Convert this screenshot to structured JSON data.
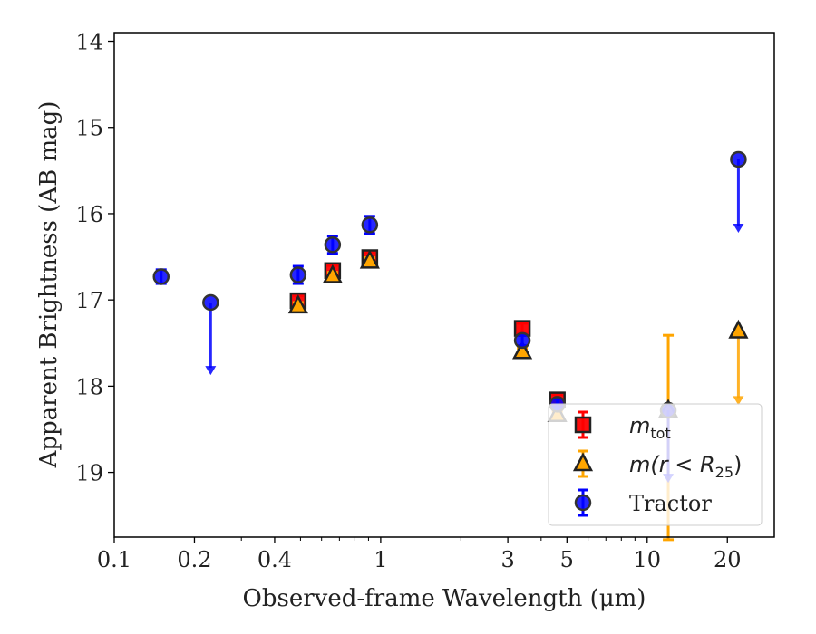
{
  "chart_data": {
    "type": "scatter",
    "xlabel": "Observed-frame Wavelength (μm)",
    "ylabel": "Apparent Brightness (AB mag)",
    "xscale": "log",
    "yaxis_inverted": true,
    "xlim": [
      0.1,
      30
    ],
    "ylim": [
      19.75,
      13.9
    ],
    "xticks": [
      0.1,
      0.2,
      0.4,
      1,
      3,
      5,
      10,
      20
    ],
    "xtick_labels": [
      "0.1",
      "0.2",
      "0.4",
      "1",
      "3",
      "5",
      "10",
      "20"
    ],
    "yticks": [
      14,
      15,
      16,
      17,
      18,
      19
    ],
    "ytick_labels": [
      "14",
      "15",
      "16",
      "17",
      "18",
      "19"
    ],
    "grid": false,
    "legend_position": "lower-right",
    "series": [
      {
        "key": "mtot",
        "legend_main": "m",
        "legend_sub": "tot",
        "marker": "square",
        "color": "#ff0000",
        "points": [
          {
            "x": 0.49,
            "y": 17.01,
            "err": 0.06
          },
          {
            "x": 0.66,
            "y": 16.66,
            "err": 0.06
          },
          {
            "x": 0.91,
            "y": 16.51,
            "err": 0.06
          },
          {
            "x": 3.4,
            "y": 17.33,
            "err": 0.06
          },
          {
            "x": 4.6,
            "y": 18.16,
            "err": 0.06
          }
        ]
      },
      {
        "key": "mr25",
        "legend_main": "m(r < R",
        "legend_sub": "25",
        "legend_suffix": ")",
        "marker": "triangle",
        "color": "#ffa500",
        "points": [
          {
            "x": 0.49,
            "y": 17.07,
            "err": 0.04
          },
          {
            "x": 0.66,
            "y": 16.72,
            "err": 0.04
          },
          {
            "x": 0.91,
            "y": 16.55,
            "err": 0.04
          },
          {
            "x": 3.4,
            "y": 17.6,
            "err": 0.04
          },
          {
            "x": 4.6,
            "y": 18.33,
            "err": 0.04
          },
          {
            "x": 12.0,
            "y": 18.28,
            "err_up": 0.87,
            "err_down": 1.5
          },
          {
            "x": 22.0,
            "y": 17.36,
            "upper_limit": true,
            "arrow_to": 18.2
          }
        ]
      },
      {
        "key": "tractor",
        "legend_main": "Tractor",
        "marker": "circle",
        "color": "#0000ff",
        "points": [
          {
            "x": 0.15,
            "y": 16.73,
            "err": 0.08
          },
          {
            "x": 0.23,
            "y": 17.03,
            "upper_limit": true,
            "arrow_to": 17.85
          },
          {
            "x": 0.49,
            "y": 16.71,
            "err": 0.1
          },
          {
            "x": 0.66,
            "y": 16.36,
            "err": 0.1
          },
          {
            "x": 0.91,
            "y": 16.13,
            "err": 0.1
          },
          {
            "x": 3.4,
            "y": 17.47,
            "err": 0.06
          },
          {
            "x": 4.6,
            "y": 18.21,
            "err": 0.06
          },
          {
            "x": 12.0,
            "y": 18.28,
            "upper_limit": true,
            "arrow_to": 19.1
          },
          {
            "x": 22.0,
            "y": 15.37,
            "upper_limit": true,
            "arrow_to": 16.2
          }
        ]
      }
    ]
  }
}
